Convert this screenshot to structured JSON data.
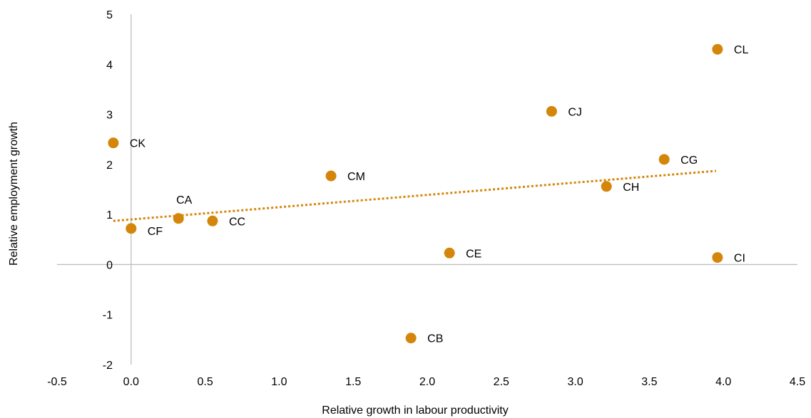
{
  "chart_data": {
    "type": "scatter",
    "title": "",
    "xlabel": "Relative growth in labour productivity",
    "ylabel": "Relative employment growth",
    "xlim": [
      -0.5,
      4.5
    ],
    "ylim": [
      -2,
      5
    ],
    "xticks": [
      "-0.5",
      "0.0",
      "0.5",
      "1.0",
      "1.5",
      "2.0",
      "2.5",
      "3.0",
      "3.5",
      "4.0",
      "4.5"
    ],
    "yticks": [
      "-2",
      "-1",
      "0",
      "1",
      "2",
      "3",
      "4",
      "5"
    ],
    "grid": false,
    "marker_color": "#D4860B",
    "trendline": {
      "style": "dotted",
      "color": "#D4860B",
      "x": [
        -0.12,
        3.95
      ],
      "y": [
        0.87,
        1.87
      ]
    },
    "points": [
      {
        "label": "CA",
        "x": 0.32,
        "y": 0.92,
        "label_pos": "top"
      },
      {
        "label": "CB",
        "x": 1.89,
        "y": -1.47,
        "label_pos": "right"
      },
      {
        "label": "CC",
        "x": 0.55,
        "y": 0.87,
        "label_pos": "right"
      },
      {
        "label": "CE",
        "x": 2.15,
        "y": 0.23,
        "label_pos": "right"
      },
      {
        "label": "CF",
        "x": 0.0,
        "y": 0.72,
        "label_pos": "right-below"
      },
      {
        "label": "CG",
        "x": 3.6,
        "y": 2.1,
        "label_pos": "right"
      },
      {
        "label": "CH",
        "x": 3.21,
        "y": 1.56,
        "label_pos": "right"
      },
      {
        "label": "CI",
        "x": 3.96,
        "y": 0.14,
        "label_pos": "right"
      },
      {
        "label": "CJ",
        "x": 2.84,
        "y": 3.06,
        "label_pos": "right"
      },
      {
        "label": "CK",
        "x": -0.12,
        "y": 2.43,
        "label_pos": "right"
      },
      {
        "label": "CL",
        "x": 3.96,
        "y": 4.3,
        "label_pos": "right"
      },
      {
        "label": "CM",
        "x": 1.35,
        "y": 1.77,
        "label_pos": "right"
      }
    ]
  }
}
